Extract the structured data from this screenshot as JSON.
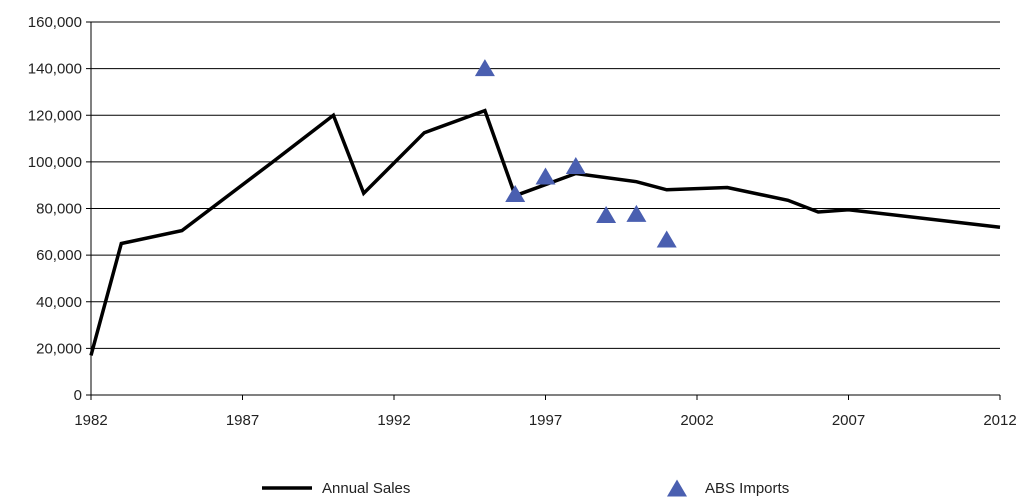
{
  "chart_data": {
    "type": "line",
    "x_ticks": [
      "1982",
      "1987",
      "1992",
      "1997",
      "2002",
      "2007",
      "2012"
    ],
    "y_ticks": [
      "0",
      "20,000",
      "40,000",
      "60,000",
      "80,000",
      "100,000",
      "120,000",
      "140,000",
      "160,000"
    ],
    "xlim": [
      1982,
      2012
    ],
    "ylim": [
      0,
      160000
    ],
    "grid": "horizontal",
    "legend_position": "bottom",
    "series": [
      {
        "name": "Annual Sales",
        "type": "line",
        "color": "#000000",
        "points": [
          [
            1982,
            17000
          ],
          [
            1983,
            65000
          ],
          [
            1985,
            70500
          ],
          [
            1988,
            100000
          ],
          [
            1990,
            120000
          ],
          [
            1991,
            86500
          ],
          [
            1993,
            112500
          ],
          [
            1995,
            122000
          ],
          [
            1996,
            85500
          ],
          [
            1998,
            95000
          ],
          [
            2000,
            91500
          ],
          [
            2001,
            88000
          ],
          [
            2003,
            89000
          ],
          [
            2005,
            83500
          ],
          [
            2006,
            78500
          ],
          [
            2007,
            79500
          ],
          [
            2012,
            72000
          ]
        ]
      },
      {
        "name": "ABS Imports",
        "type": "scatter",
        "color": "#4a5fb0",
        "marker": "triangle",
        "points": [
          [
            1995,
            140000
          ],
          [
            1996,
            86000
          ],
          [
            1997,
            93500
          ],
          [
            1998,
            98000
          ],
          [
            1999,
            77000
          ],
          [
            2000,
            77500
          ],
          [
            2001,
            66500
          ]
        ]
      }
    ]
  }
}
